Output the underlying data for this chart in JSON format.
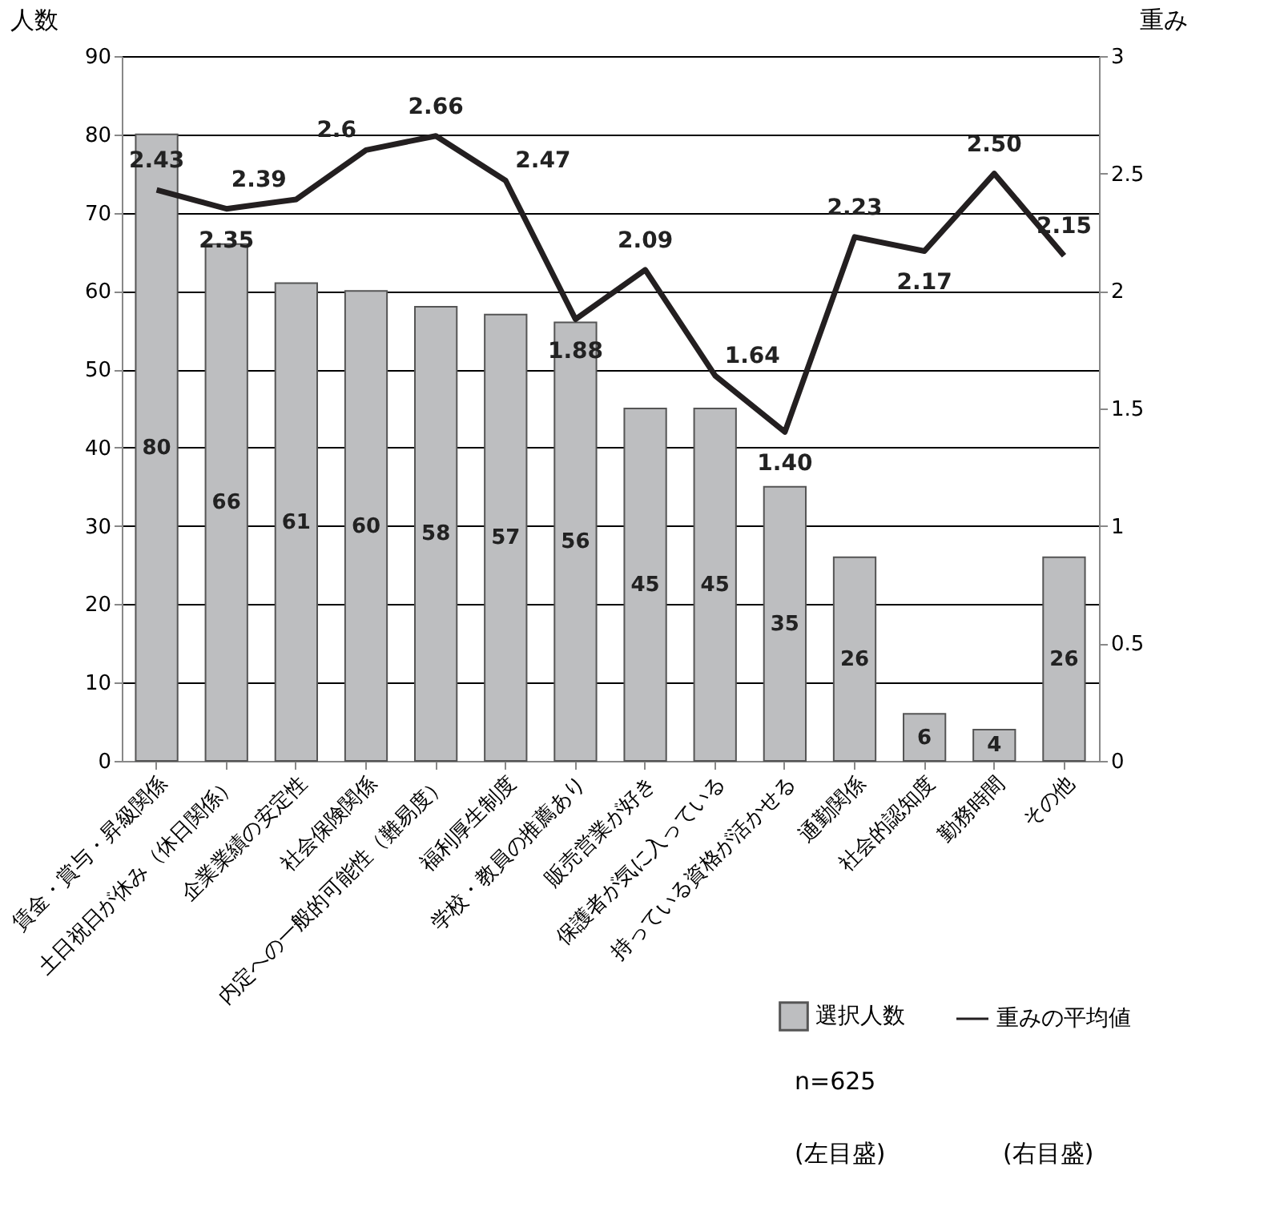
{
  "chart_data": {
    "type": "bar",
    "categories": [
      "賃金・賞与・昇級関係",
      "土日祝日が休み（休日関係）",
      "企業業績の安定性",
      "社会保険関係",
      "内定への一般的可能性（難易度）",
      "福利厚生制度",
      "学校・教員の推薦あり",
      "販売営業が好き",
      "保護者が気に入っている",
      "持っている資格が活かせる",
      "通勤関係",
      "社会的認知度",
      "勤務時間",
      "その他"
    ],
    "ylabel": "人数",
    "y2label": "重み",
    "ylim": [
      0,
      90
    ],
    "yticks": [
      0,
      10,
      20,
      30,
      40,
      50,
      60,
      70,
      80,
      90
    ],
    "y2lim": [
      0,
      3
    ],
    "y2ticks": [
      0,
      0.5,
      1,
      1.5,
      2,
      2.5,
      3
    ],
    "grid": "y",
    "legend": "bottom right",
    "annotations": [
      "n=625",
      "(左目盛)",
      "(右目盛)"
    ],
    "series": [
      {
        "name": "選択人数",
        "color": "#bdbec0",
        "values": [
          80,
          66,
          61,
          60,
          58,
          57,
          56,
          45,
          45,
          35,
          26,
          6,
          4,
          26
        ],
        "value_labels": [
          "80",
          "66",
          "61",
          "60",
          "58",
          "57",
          "56",
          "45",
          "45",
          "35",
          "26",
          "6",
          "4",
          "26"
        ]
      },
      {
        "name": "重みの平均値",
        "type": "line",
        "axis": "y2",
        "color": "#231f20",
        "values": [
          2.43,
          2.35,
          2.39,
          2.6,
          2.66,
          2.47,
          1.88,
          2.09,
          1.64,
          1.4,
          2.23,
          2.17,
          2.5,
          2.15
        ],
        "value_labels": [
          "2.43",
          "2.35",
          "2.39",
          "2.6",
          "2.66",
          "2.47",
          "1.88",
          "2.09",
          "1.64",
          "1.40",
          "2.23",
          "2.17",
          "2.50",
          "2.15"
        ]
      }
    ]
  }
}
